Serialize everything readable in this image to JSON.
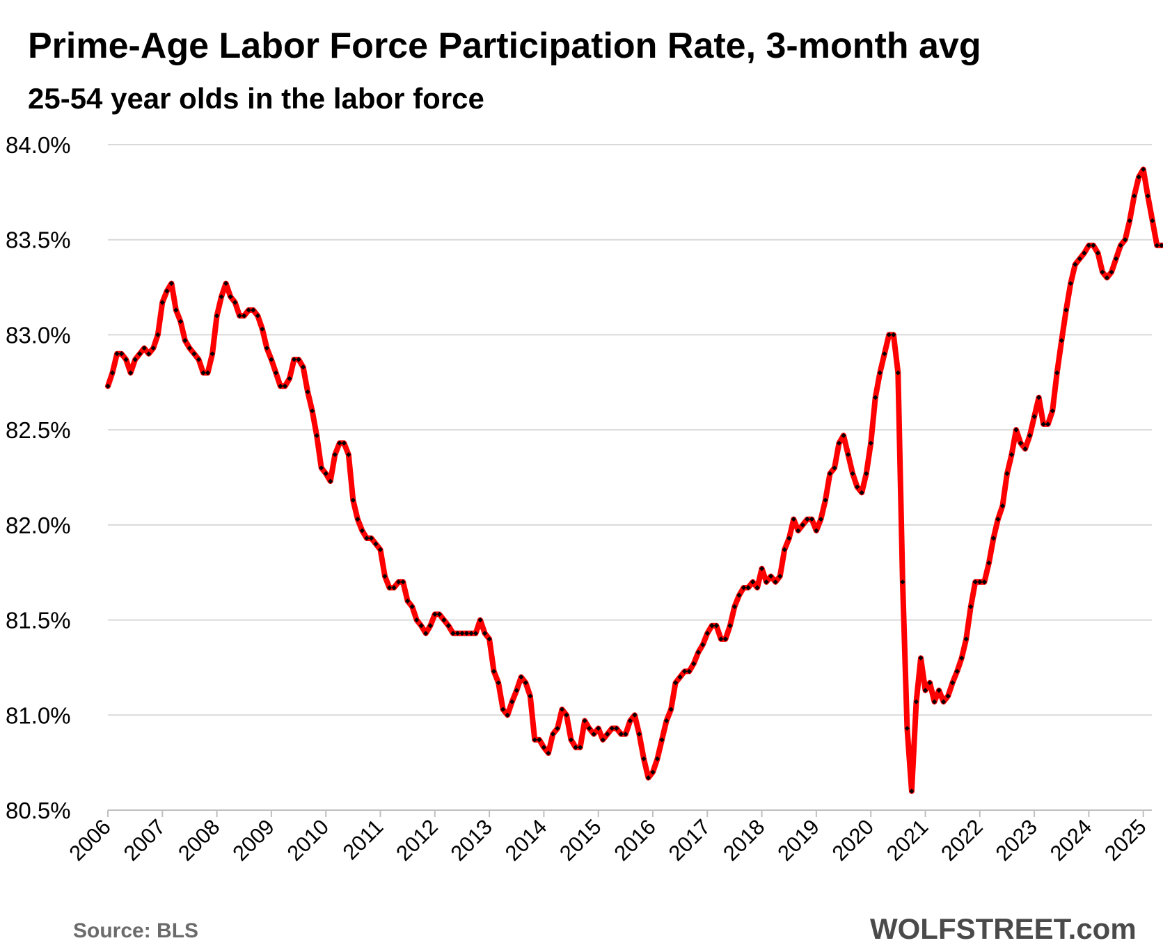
{
  "chart_data": {
    "type": "line",
    "title": "Prime-Age Labor Force Participation Rate, 3-month avg",
    "subtitle": "25-54 year olds in the labor force",
    "source": "Source: BLS",
    "brand": "WOLFSTREET.com",
    "ylim": [
      80.5,
      84.0
    ],
    "yticks": [
      80.5,
      81.0,
      81.5,
      82.0,
      82.5,
      83.0,
      83.5,
      84.0
    ],
    "ytick_labels": [
      "80.5%",
      "81.0%",
      "81.5%",
      "82.0%",
      "82.5%",
      "83.0%",
      "83.5%",
      "84.0%"
    ],
    "xticks": [
      "2006",
      "2007",
      "2008",
      "2009",
      "2010",
      "2011",
      "2012",
      "2013",
      "2014",
      "2015",
      "2016",
      "2017",
      "2018",
      "2019",
      "2020",
      "2021",
      "2022",
      "2023",
      "2024",
      "2025"
    ],
    "grid": "horizontal",
    "legend": "none",
    "line_color": "#ff0000",
    "marker_color": "#000000",
    "x_start": "2006-01",
    "series": [
      {
        "values": [
          82.73,
          82.8,
          82.9,
          82.9,
          82.87,
          82.8,
          82.87,
          82.9,
          82.93,
          82.9,
          82.93,
          83.0,
          83.17,
          83.23,
          83.27,
          83.13,
          83.07,
          82.97,
          82.93,
          82.9,
          82.87,
          82.8,
          82.8,
          82.9,
          83.1,
          83.2,
          83.27,
          83.2,
          83.17,
          83.1,
          83.1,
          83.13,
          83.13,
          83.1,
          83.03,
          82.93,
          82.87,
          82.8,
          82.73,
          82.73,
          82.77,
          82.87,
          82.87,
          82.83,
          82.7,
          82.6,
          82.47,
          82.3,
          82.27,
          82.23,
          82.37,
          82.43,
          82.43,
          82.37,
          82.13,
          82.03,
          81.97,
          81.93,
          81.93,
          81.9,
          81.87,
          81.73,
          81.67,
          81.67,
          81.7,
          81.7,
          81.6,
          81.57,
          81.5,
          81.47,
          81.43,
          81.47,
          81.53,
          81.53,
          81.5,
          81.47,
          81.43,
          81.43,
          81.43,
          81.43,
          81.43,
          81.43,
          81.5,
          81.43,
          81.4,
          81.23,
          81.17,
          81.03,
          81.0,
          81.07,
          81.13,
          81.2,
          81.17,
          81.1,
          80.87,
          80.87,
          80.83,
          80.8,
          80.9,
          80.93,
          81.03,
          81.0,
          80.87,
          80.83,
          80.83,
          80.97,
          80.93,
          80.9,
          80.93,
          80.87,
          80.9,
          80.93,
          80.93,
          80.9,
          80.9,
          80.97,
          81.0,
          80.9,
          80.77,
          80.67,
          80.7,
          80.77,
          80.87,
          80.97,
          81.03,
          81.17,
          81.2,
          81.23,
          81.23,
          81.27,
          81.33,
          81.37,
          81.43,
          81.47,
          81.47,
          81.4,
          81.4,
          81.47,
          81.57,
          81.63,
          81.67,
          81.67,
          81.7,
          81.67,
          81.77,
          81.7,
          81.73,
          81.7,
          81.73,
          81.87,
          81.93,
          82.03,
          81.97,
          82.0,
          82.03,
          82.03,
          81.97,
          82.03,
          82.13,
          82.27,
          82.3,
          82.43,
          82.47,
          82.37,
          82.27,
          82.2,
          82.17,
          82.27,
          82.43,
          82.67,
          82.8,
          82.9,
          83.0,
          83.0,
          82.8,
          81.7,
          80.93,
          80.6,
          81.07,
          81.3,
          81.13,
          81.17,
          81.07,
          81.13,
          81.07,
          81.1,
          81.17,
          81.23,
          81.3,
          81.4,
          81.57,
          81.7,
          81.7,
          81.7,
          81.8,
          81.93,
          82.03,
          82.1,
          82.27,
          82.37,
          82.5,
          82.43,
          82.4,
          82.47,
          82.57,
          82.67,
          82.53,
          82.53,
          82.6,
          82.8,
          82.97,
          83.13,
          83.27,
          83.37,
          83.4,
          83.43,
          83.47,
          83.47,
          83.43,
          83.33,
          83.3,
          83.33,
          83.4,
          83.47,
          83.5,
          83.6,
          83.73,
          83.83,
          83.87,
          83.73,
          83.6,
          83.47,
          83.47,
          83.47,
          83.43
        ]
      }
    ]
  }
}
